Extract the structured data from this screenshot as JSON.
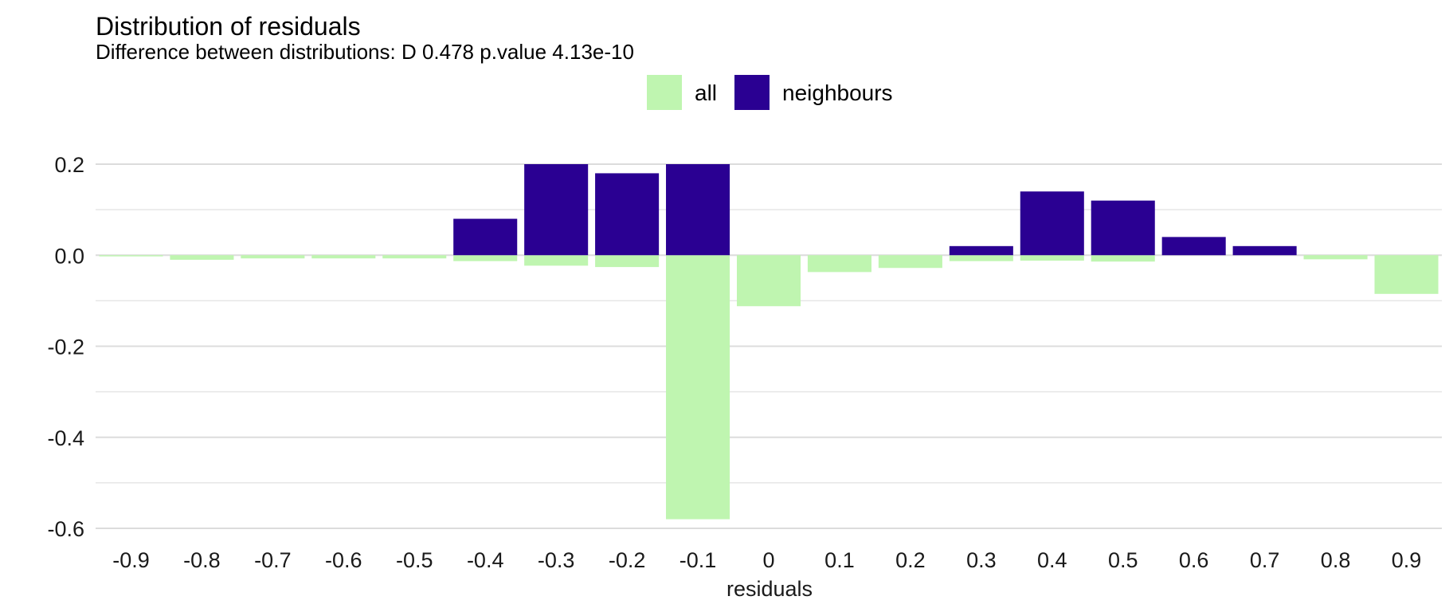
{
  "chart_data": {
    "type": "bar",
    "title": "Distribution of residuals",
    "subtitle": "Difference between distributions: D 0.478 p.value 4.13e-10",
    "xlabel": "residuals",
    "ylabel": "",
    "categories": [
      "-0.9",
      "-0.8",
      "-0.7",
      "-0.6",
      "-0.5",
      "-0.4",
      "-0.3",
      "-0.2",
      "-0.1",
      "0",
      "0.1",
      "0.2",
      "0.3",
      "0.4",
      "0.5",
      "0.6",
      "0.7",
      "0.8",
      "0.9"
    ],
    "series": [
      {
        "name": "all",
        "color": "#bff5b0",
        "values": [
          -0.002,
          -0.01,
          -0.007,
          -0.007,
          -0.007,
          -0.013,
          -0.023,
          -0.026,
          -0.58,
          -0.112,
          -0.037,
          -0.028,
          -0.013,
          -0.012,
          -0.014,
          0,
          0,
          -0.009,
          -0.085
        ]
      },
      {
        "name": "neighbours",
        "color": "#2a0092",
        "values": [
          0,
          0,
          0,
          0,
          0,
          0.08,
          0.2,
          0.18,
          0.2,
          0,
          0,
          0,
          0.02,
          0.14,
          0.12,
          0.04,
          0.02,
          0,
          0
        ]
      }
    ],
    "yticks": [
      0.2,
      0.0,
      -0.2,
      -0.4,
      -0.6
    ],
    "ytick_labels": [
      "0.2",
      "0.0",
      "-0.2",
      "-0.4",
      "-0.6"
    ],
    "ylim": [
      -0.6,
      0.2
    ],
    "grid": true,
    "legend_position": "top"
  }
}
